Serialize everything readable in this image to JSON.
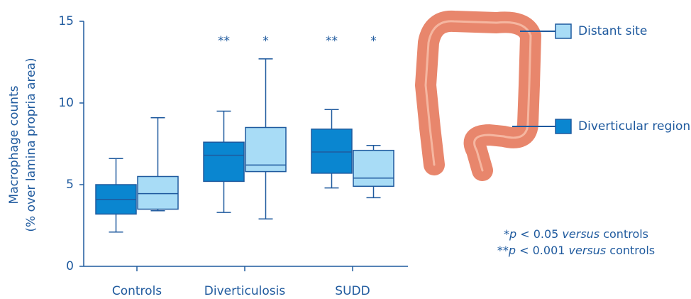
{
  "chart_data": {
    "type": "box",
    "ylabel": [
      "Macrophage counts",
      "(% over lamina propria area)"
    ],
    "categories": [
      "Controls",
      "Diverticulosis",
      "SUDD"
    ],
    "ylim": [
      0,
      15
    ],
    "yticks": [
      0,
      5,
      10,
      15
    ],
    "series": [
      {
        "name": "Diverticular region",
        "color": "#0a86d0",
        "values": [
          {
            "min": 2.1,
            "q1": 3.2,
            "median": 4.1,
            "q3": 5.0,
            "max": 6.6
          },
          {
            "min": 3.3,
            "q1": 5.2,
            "median": 6.8,
            "q3": 7.6,
            "max": 9.5
          },
          {
            "min": 4.8,
            "q1": 5.7,
            "median": 7.0,
            "q3": 8.4,
            "max": 9.6
          }
        ],
        "significance": [
          null,
          "**",
          "**"
        ]
      },
      {
        "name": "Distant site",
        "color": "#a8dcf6",
        "values": [
          {
            "min": 3.4,
            "q1": 3.5,
            "median": 4.45,
            "q3": 5.5,
            "max": 9.1
          },
          {
            "min": 2.9,
            "q1": 5.8,
            "median": 6.2,
            "q3": 8.5,
            "max": 12.7
          },
          {
            "min": 4.2,
            "q1": 4.9,
            "median": 5.4,
            "q3": 7.1,
            "max": 7.4
          }
        ],
        "significance": [
          null,
          "*",
          "*"
        ]
      }
    ],
    "footnotes": [
      [
        "*",
        "p",
        " < 0.05 ",
        "versus",
        " controls"
      ],
      [
        "**",
        "p",
        " < 0.001 ",
        "versus",
        " controls"
      ]
    ]
  }
}
